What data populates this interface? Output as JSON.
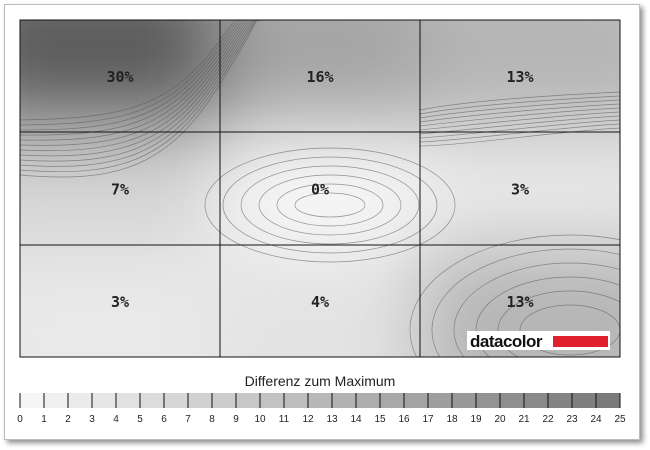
{
  "chart_data": {
    "type": "heatmap",
    "rows": 3,
    "cols": 3,
    "values": [
      [
        30,
        16,
        13
      ],
      [
        7,
        0,
        3
      ],
      [
        3,
        4,
        13
      ]
    ],
    "labels": [
      [
        "30%",
        "16%",
        "13%"
      ],
      [
        "7%",
        "0%",
        "3%"
      ],
      [
        "3%",
        "4%",
        "13%"
      ]
    ],
    "legend": {
      "title": "Differenz zum Maximum",
      "ticks": [
        "0",
        "1",
        "2",
        "3",
        "4",
        "5",
        "6",
        "7",
        "8",
        "9",
        "10",
        "11",
        "12",
        "13",
        "14",
        "15",
        "16",
        "17",
        "18",
        "19",
        "20",
        "21",
        "22",
        "23",
        "24",
        "25"
      ],
      "range": [
        0,
        25
      ],
      "color_min": "#f8f8f8",
      "color_max": "#777777"
    }
  },
  "logo": {
    "text": "datacolor",
    "accent": "#e0202a"
  }
}
